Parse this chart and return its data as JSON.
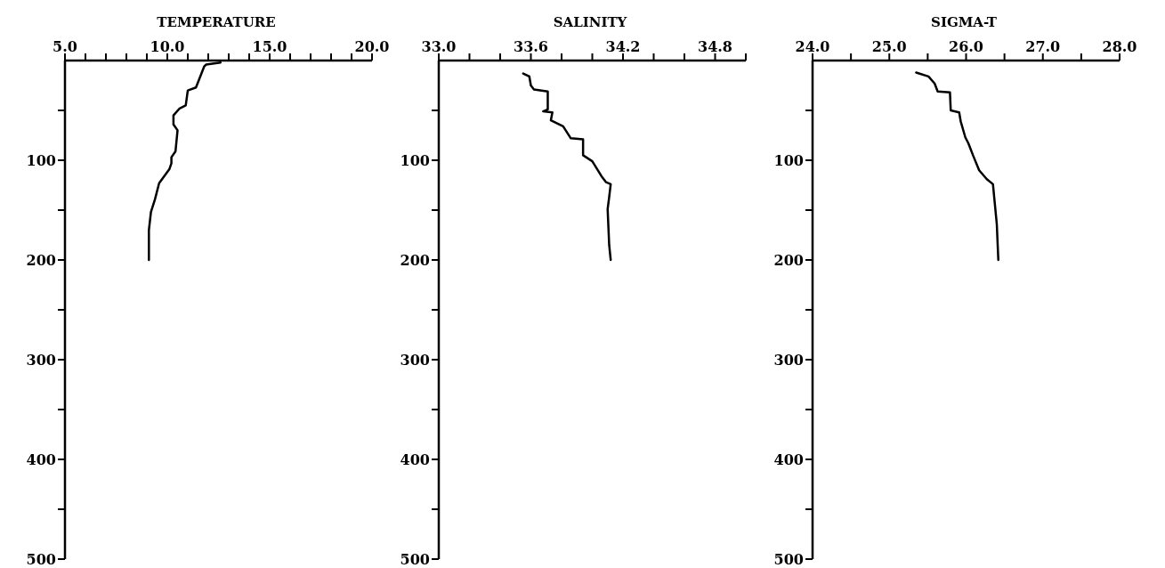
{
  "chart_data": [
    {
      "type": "line",
      "title": "TEMPERATURE",
      "color": "#000000",
      "x": [
        12.6,
        11.9,
        11.8,
        11.4,
        11.0,
        10.9,
        10.6,
        10.3,
        10.3,
        10.5,
        10.4,
        10.2,
        10.2,
        10.1,
        9.6,
        9.4,
        9.2,
        9.1,
        9.1
      ],
      "values": [
        2,
        4,
        6,
        27,
        30,
        45,
        48,
        55,
        64,
        70,
        91,
        97,
        103,
        109,
        123,
        139,
        152,
        170,
        200
      ],
      "xlim": [
        5,
        20
      ],
      "xticks": [
        {
          "value": 5,
          "label": "5.0"
        },
        {
          "value": 6,
          "label": null
        },
        {
          "value": 7,
          "label": null
        },
        {
          "value": 8,
          "label": null
        },
        {
          "value": 9,
          "label": null
        },
        {
          "value": 10,
          "label": "10.0"
        },
        {
          "value": 11,
          "label": null
        },
        {
          "value": 12,
          "label": null
        },
        {
          "value": 13,
          "label": null
        },
        {
          "value": 14,
          "label": null
        },
        {
          "value": 15,
          "label": "15.0"
        },
        {
          "value": 16,
          "label": null
        },
        {
          "value": 17,
          "label": null
        },
        {
          "value": 18,
          "label": null
        },
        {
          "value": 19,
          "label": null
        },
        {
          "value": 20,
          "label": "20.0"
        }
      ],
      "ylim": [
        500,
        0
      ],
      "yticks": [
        {
          "value": 50,
          "label": null
        },
        100,
        {
          "value": 150,
          "label": null
        },
        200,
        {
          "value": 250,
          "label": null
        },
        300,
        {
          "value": 350,
          "label": null
        },
        400,
        {
          "value": 450,
          "label": null
        },
        500
      ]
    },
    {
      "type": "line",
      "title": "SALINITY",
      "color": "#000000",
      "x": [
        33.55,
        33.59,
        33.6,
        33.62,
        33.71,
        33.71,
        33.68,
        33.74,
        33.73,
        33.81,
        33.86,
        33.94,
        33.94,
        34.0,
        34.06,
        34.09,
        34.12,
        34.11,
        34.1,
        34.11,
        34.12
      ],
      "values": [
        13,
        16,
        25,
        29,
        31,
        49,
        51,
        52,
        60,
        66,
        78,
        79,
        95,
        101,
        116,
        122,
        124,
        137,
        149,
        185,
        200
      ],
      "xlim": [
        33,
        35
      ],
      "xticks": [
        {
          "value": 33,
          "label": "33.0"
        },
        {
          "value": 33.2,
          "label": null
        },
        {
          "value": 33.4,
          "label": null
        },
        {
          "value": 33.6,
          "label": "33.6"
        },
        {
          "value": 33.8,
          "label": null
        },
        {
          "value": 34,
          "label": null
        },
        {
          "value": 34.2,
          "label": "34.2"
        },
        {
          "value": 34.4,
          "label": null
        },
        {
          "value": 34.6,
          "label": null
        },
        {
          "value": 34.8,
          "label": "34.8"
        },
        {
          "value": 35,
          "label": null
        }
      ],
      "ylim": [
        500,
        0
      ],
      "yticks": [
        {
          "value": 50,
          "label": null
        },
        100,
        {
          "value": 150,
          "label": null
        },
        200,
        {
          "value": 250,
          "label": null
        },
        300,
        {
          "value": 350,
          "label": null
        },
        400,
        {
          "value": 450,
          "label": null
        },
        500
      ]
    },
    {
      "type": "line",
      "title": "SIGMA-T",
      "color": "#000000",
      "x": [
        25.35,
        25.51,
        25.59,
        25.63,
        25.79,
        25.8,
        25.91,
        25.93,
        25.99,
        26.03,
        26.09,
        26.17,
        26.27,
        26.35,
        26.37,
        26.4,
        26.42
      ],
      "values": [
        12,
        16,
        23,
        31,
        32,
        50,
        52,
        61,
        77,
        83,
        95,
        110,
        119,
        124,
        140,
        164,
        200
      ],
      "xlim": [
        24,
        28
      ],
      "xticks": [
        {
          "value": 24,
          "label": "24.0"
        },
        {
          "value": 24.5,
          "label": null
        },
        {
          "value": 25,
          "label": "25.0"
        },
        {
          "value": 25.5,
          "label": null
        },
        {
          "value": 26,
          "label": "26.0"
        },
        {
          "value": 26.5,
          "label": null
        },
        {
          "value": 27,
          "label": "27.0"
        },
        {
          "value": 27.5,
          "label": null
        },
        {
          "value": 28,
          "label": "28.0"
        }
      ],
      "ylim": [
        500,
        0
      ],
      "yticks": [
        {
          "value": 50,
          "label": null
        },
        100,
        {
          "value": 150,
          "label": null
        },
        200,
        {
          "value": 250,
          "label": null
        },
        300,
        {
          "value": 350,
          "label": null
        },
        400,
        {
          "value": 450,
          "label": null
        },
        500
      ]
    }
  ]
}
